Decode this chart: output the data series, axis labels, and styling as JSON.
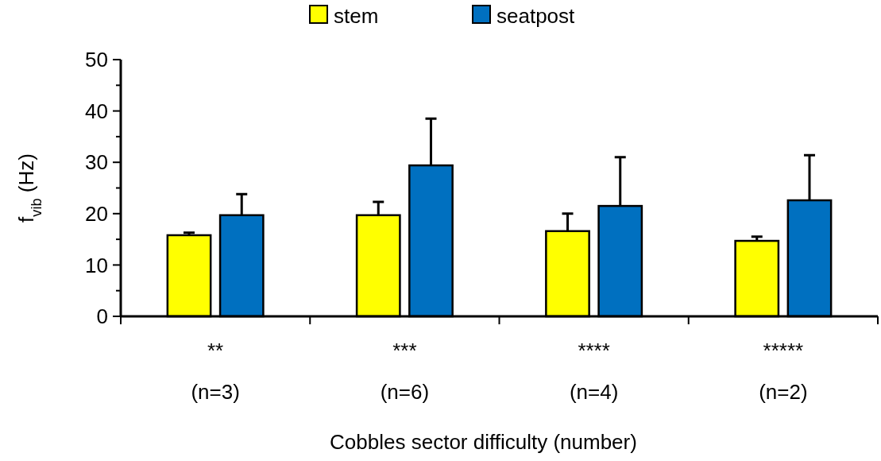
{
  "chart_data": {
    "type": "bar",
    "categories": [
      "**\n(n=3)",
      "***\n(n=6)",
      "****\n(n=4)",
      "*****\n(n=2)"
    ],
    "series": [
      {
        "name": "stem",
        "color": "#ffff00",
        "values": [
          15.8,
          19.7,
          16.6,
          14.7
        ],
        "errors": [
          [
            15.8,
            16.3
          ],
          [
            19.7,
            22.3
          ],
          [
            16.6,
            20.0
          ],
          [
            14.7,
            15.5
          ]
        ]
      },
      {
        "name": "seatpost",
        "color": "#0070c0",
        "values": [
          19.7,
          29.4,
          21.5,
          22.6
        ],
        "errors": [
          [
            19.7,
            23.8
          ],
          [
            29.4,
            38.5
          ],
          [
            21.5,
            31.0
          ],
          [
            22.6,
            31.4
          ]
        ]
      }
    ],
    "xlabel": "Cobbles sector difficulty (number)",
    "ylabel": "f$_{vib}$ (Hz)",
    "ylim": [
      0,
      50
    ],
    "yticks": [
      0,
      {
        "value": 5,
        "label": null
      },
      10,
      {
        "value": 15,
        "label": null
      },
      20,
      {
        "value": 25,
        "label": null
      },
      30,
      {
        "value": 35,
        "label": null
      },
      40,
      {
        "value": 45,
        "label": null
      },
      50
    ],
    "grid": false,
    "legend": "top"
  }
}
